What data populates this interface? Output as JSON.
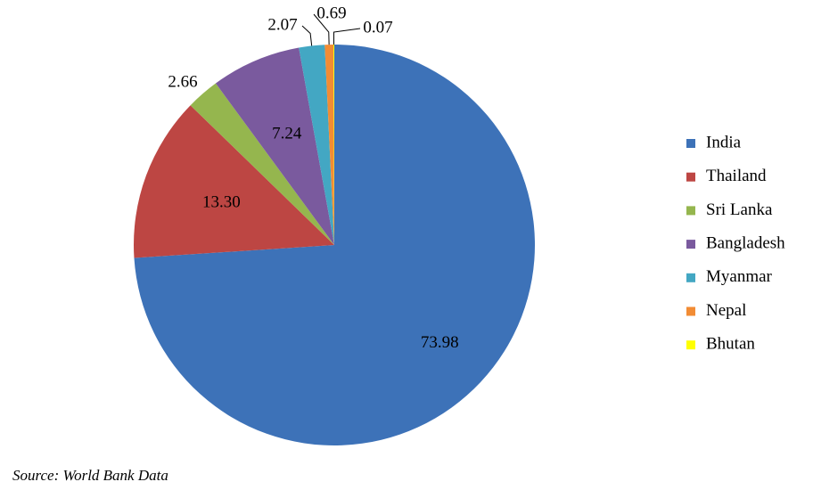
{
  "chart_data": {
    "type": "pie",
    "categories": [
      "India",
      "Thailand",
      "Sri Lanka",
      "Bangladesh",
      "Myanmar",
      "Nepal",
      "Bhutan"
    ],
    "values": [
      73.98,
      13.3,
      2.66,
      7.24,
      2.07,
      0.69,
      0.07
    ],
    "value_labels": [
      "73.98",
      "13.30",
      "2.66",
      "7.24",
      "2.07",
      "0.69",
      "0.07"
    ],
    "colors": [
      "#3d72b8",
      "#bd4643",
      "#95b64e",
      "#7a5a9e",
      "#43a7c3",
      "#f28c34",
      "#ffff00"
    ],
    "legend": "right",
    "source": "Source: World Bank Data"
  }
}
